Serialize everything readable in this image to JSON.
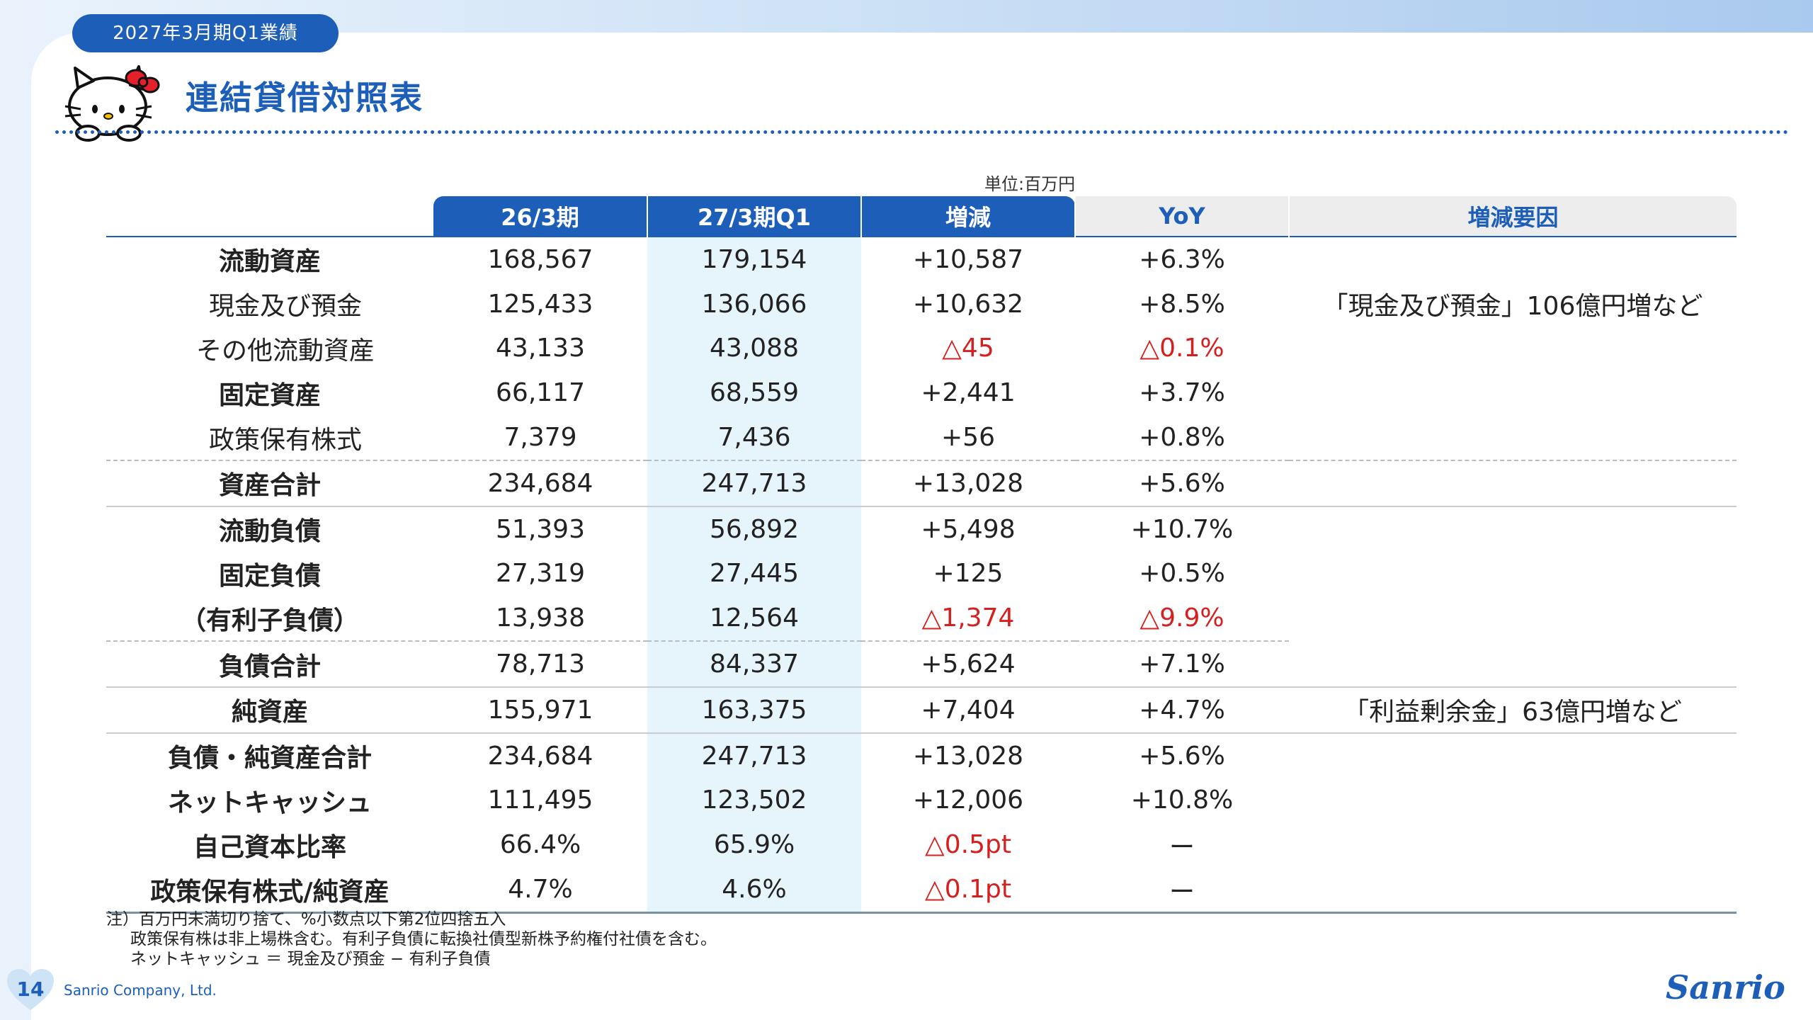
{
  "header": {
    "period_label": "2027年3月期Q1業績",
    "title": "連結貸借対照表",
    "unit": "単位:百万円"
  },
  "table": {
    "columns": [
      "26/3期",
      "27/3期Q1",
      "増減",
      "YoY",
      "増減要因"
    ],
    "rows": [
      {
        "label": "流動資産",
        "v1": "168,567",
        "v2": "179,154",
        "diff": "+10,587",
        "yoy": "+6.3%",
        "note": ""
      },
      {
        "label": "現金及び預金",
        "v1": "125,433",
        "v2": "136,066",
        "diff": "+10,632",
        "yoy": "+8.5%",
        "note": "「現金及び預金」106億円増など"
      },
      {
        "label": "その他流動資産",
        "v1": "43,133",
        "v2": "43,088",
        "diff": "△45",
        "yoy": "△0.1%",
        "note": ""
      },
      {
        "label": "固定資産",
        "v1": "66,117",
        "v2": "68,559",
        "diff": "+2,441",
        "yoy": "+3.7%",
        "note": ""
      },
      {
        "label": "政策保有株式",
        "v1": "7,379",
        "v2": "7,436",
        "diff": "+56",
        "yoy": "+0.8%",
        "note": ""
      },
      {
        "label": "資産合計",
        "v1": "234,684",
        "v2": "247,713",
        "diff": "+13,028",
        "yoy": "+5.6%",
        "note": ""
      },
      {
        "label": "流動負債",
        "v1": "51,393",
        "v2": "56,892",
        "diff": "+5,498",
        "yoy": "+10.7%",
        "note": ""
      },
      {
        "label": "固定負債",
        "v1": "27,319",
        "v2": "27,445",
        "diff": "+125",
        "yoy": "+0.5%",
        "note": ""
      },
      {
        "label": "（有利子負債）",
        "v1": "13,938",
        "v2": "12,564",
        "diff": "△1,374",
        "yoy": "△9.9%",
        "note": ""
      },
      {
        "label": "負債合計",
        "v1": "78,713",
        "v2": "84,337",
        "diff": "+5,624",
        "yoy": "+7.1%",
        "note": ""
      },
      {
        "label": "純資産",
        "v1": "155,971",
        "v2": "163,375",
        "diff": "+7,404",
        "yoy": "+4.7%",
        "note": "「利益剰余金」63億円増など"
      },
      {
        "label": "負債・純資産合計",
        "v1": "234,684",
        "v2": "247,713",
        "diff": "+13,028",
        "yoy": "+5.6%",
        "note": ""
      },
      {
        "label": "ネットキャッシュ",
        "v1": "111,495",
        "v2": "123,502",
        "diff": "+12,006",
        "yoy": "+10.8%",
        "note": ""
      },
      {
        "label": "自己資本比率",
        "v1": "66.4%",
        "v2": "65.9%",
        "diff": "△0.5pt",
        "yoy": "ー",
        "note": ""
      },
      {
        "label": "政策保有株式/純資産",
        "v1": "4.7%",
        "v2": "4.6%",
        "diff": "△0.1pt",
        "yoy": "ー",
        "note": ""
      }
    ]
  },
  "footnotes": [
    "注）百万円未満切り捨て、%小数点以下第2位四捨五入",
    "政策保有株は非上場株含む。有利子負債に転換社債型新株予約権付社債を含む。",
    "ネットキャッシュ ＝ 現金及び預金 − 有利子負債"
  ],
  "footer": {
    "page_number": "14",
    "company": "Sanrio Company, Ltd.",
    "brand": "Sanrio"
  },
  "colors": {
    "brand_blue": "#1d5fb8",
    "negative_red": "#d42020",
    "highlight_col": "#e6f4fc"
  }
}
